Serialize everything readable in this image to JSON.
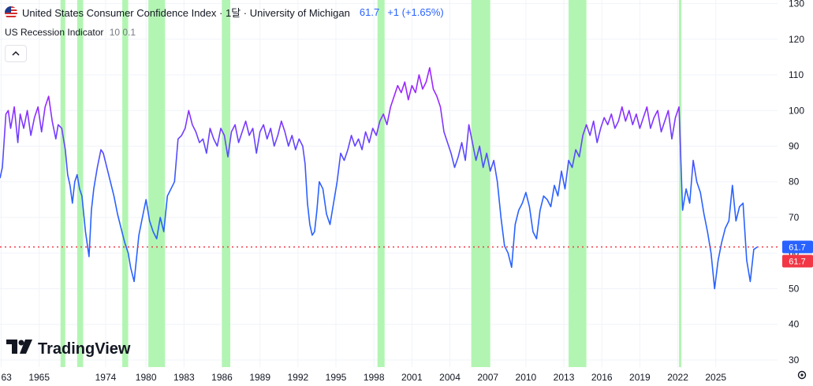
{
  "legend": {
    "title": "United States Consumer Confidence Index · 1달 · University of Michigan",
    "last_value": "61.7",
    "change": "+1 (+1.65%)",
    "indicator_name": "US Recession Indicator",
    "indicator_params": "10 0.1",
    "collapse_icon": "chevron-up-icon"
  },
  "branding": {
    "logo_text": "TradingView"
  },
  "colors": {
    "line_start": "#2962ff",
    "line_end": "#9c27ff",
    "recession": "#b2f5b2",
    "price_line": "#f23645",
    "label_blue": "#2962ff",
    "label_red": "#f23645"
  },
  "chart_data": {
    "type": "line",
    "title": "United States Consumer Confidence Index · 1달 · University of Michigan",
    "y_axis": {
      "range": [
        28,
        131
      ],
      "ticks": [
        30,
        40,
        50,
        60,
        70,
        80,
        90,
        100,
        110,
        120,
        130
      ],
      "position": "right"
    },
    "x_axis": {
      "range": [
        1962.3,
        2027.8
      ],
      "tick_labels": [
        "63",
        "1965",
        "1974",
        "1980",
        "1983",
        "1986",
        "1989",
        "1992",
        "1995",
        "1998",
        "2001",
        "2004",
        "2007",
        "2010",
        "2013",
        "2016",
        "2019",
        "2022",
        "2025"
      ],
      "tick_positions": [
        1962.4,
        1965.6,
        1971.2,
        1974.6,
        1977.8,
        1981.0,
        1984.2,
        1987.4,
        1990.6,
        1993.8,
        1997.0,
        2000.2,
        2003.4,
        2006.6,
        2009.8,
        2013.0,
        2016.2,
        2019.4,
        2022.6
      ]
    },
    "grid": true,
    "price_labels": [
      {
        "value": "61.7",
        "style": "blue"
      },
      {
        "value": "61.7",
        "style": "red"
      }
    ],
    "price_line_value": 61.7,
    "recession_periods": [
      [
        1967.4,
        1967.8
      ],
      [
        1968.8,
        1969.3
      ],
      [
        1972.6,
        1973.1
      ],
      [
        1974.8,
        1976.2
      ],
      [
        1981.0,
        1981.7
      ],
      [
        1994.1,
        1994.7
      ],
      [
        2002.0,
        2003.6
      ],
      [
        2010.2,
        2011.7
      ],
      [
        2019.5,
        2019.7
      ]
    ],
    "series": [
      {
        "points": [
          [
            1962.3,
            81
          ],
          [
            1962.5,
            84
          ],
          [
            1962.8,
            99
          ],
          [
            1963.0,
            100
          ],
          [
            1963.2,
            95
          ],
          [
            1963.5,
            101
          ],
          [
            1963.8,
            91
          ],
          [
            1964.0,
            99
          ],
          [
            1964.3,
            95
          ],
          [
            1964.6,
            100
          ],
          [
            1964.9,
            93
          ],
          [
            1965.2,
            98
          ],
          [
            1965.5,
            101
          ],
          [
            1965.8,
            94
          ],
          [
            1966.1,
            101
          ],
          [
            1966.4,
            104
          ],
          [
            1966.7,
            97
          ],
          [
            1967.0,
            92
          ],
          [
            1967.2,
            96
          ],
          [
            1967.5,
            95
          ],
          [
            1967.8,
            89
          ],
          [
            1968.0,
            82
          ],
          [
            1968.2,
            79
          ],
          [
            1968.4,
            74
          ],
          [
            1968.6,
            80
          ],
          [
            1968.8,
            82
          ],
          [
            1969.0,
            78
          ],
          [
            1969.2,
            76
          ],
          [
            1969.5,
            66
          ],
          [
            1969.8,
            59
          ],
          [
            1970.0,
            72
          ],
          [
            1970.2,
            78
          ],
          [
            1970.5,
            84
          ],
          [
            1970.8,
            89
          ],
          [
            1971.0,
            88
          ],
          [
            1971.3,
            84
          ],
          [
            1971.6,
            80
          ],
          [
            1971.9,
            76
          ],
          [
            1972.2,
            71
          ],
          [
            1972.5,
            67
          ],
          [
            1972.8,
            63
          ],
          [
            1973.1,
            60
          ],
          [
            1973.3,
            56
          ],
          [
            1973.6,
            52
          ],
          [
            1974.0,
            65
          ],
          [
            1974.3,
            70
          ],
          [
            1974.6,
            75
          ],
          [
            1974.9,
            69
          ],
          [
            1975.2,
            66
          ],
          [
            1975.5,
            64
          ],
          [
            1975.8,
            70
          ],
          [
            1976.1,
            66
          ],
          [
            1976.4,
            76
          ],
          [
            1976.7,
            78
          ],
          [
            1977.0,
            80
          ],
          [
            1977.3,
            92
          ],
          [
            1977.6,
            93
          ],
          [
            1977.9,
            95
          ],
          [
            1978.2,
            100
          ],
          [
            1978.5,
            96
          ],
          [
            1978.8,
            94
          ],
          [
            1979.1,
            91
          ],
          [
            1979.4,
            92
          ],
          [
            1979.7,
            88
          ],
          [
            1980.0,
            95
          ],
          [
            1980.3,
            92
          ],
          [
            1980.6,
            90
          ],
          [
            1980.9,
            95
          ],
          [
            1981.2,
            93
          ],
          [
            1981.5,
            87
          ],
          [
            1981.8,
            94
          ],
          [
            1982.1,
            96
          ],
          [
            1982.4,
            91
          ],
          [
            1982.7,
            94
          ],
          [
            1983.0,
            97
          ],
          [
            1983.3,
            93
          ],
          [
            1983.6,
            95
          ],
          [
            1983.9,
            88
          ],
          [
            1984.2,
            94
          ],
          [
            1984.5,
            96
          ],
          [
            1984.8,
            92
          ],
          [
            1985.1,
            95
          ],
          [
            1985.4,
            90
          ],
          [
            1985.7,
            93
          ],
          [
            1986.0,
            97
          ],
          [
            1986.3,
            94
          ],
          [
            1986.6,
            90
          ],
          [
            1986.9,
            93
          ],
          [
            1987.2,
            89
          ],
          [
            1987.5,
            92
          ],
          [
            1987.8,
            90
          ],
          [
            1988.0,
            85
          ],
          [
            1988.2,
            74
          ],
          [
            1988.4,
            68
          ],
          [
            1988.6,
            65
          ],
          [
            1988.8,
            66
          ],
          [
            1989.0,
            72
          ],
          [
            1989.2,
            80
          ],
          [
            1989.5,
            78
          ],
          [
            1989.8,
            71
          ],
          [
            1990.1,
            68
          ],
          [
            1990.4,
            74
          ],
          [
            1990.7,
            80
          ],
          [
            1991.0,
            88
          ],
          [
            1991.3,
            86
          ],
          [
            1991.6,
            89
          ],
          [
            1991.9,
            93
          ],
          [
            1992.2,
            90
          ],
          [
            1992.5,
            92
          ],
          [
            1992.8,
            89
          ],
          [
            1993.1,
            94
          ],
          [
            1993.4,
            91
          ],
          [
            1993.7,
            95
          ],
          [
            1994.0,
            93
          ],
          [
            1994.3,
            97
          ],
          [
            1994.6,
            99
          ],
          [
            1994.9,
            96
          ],
          [
            1995.2,
            101
          ],
          [
            1995.5,
            104
          ],
          [
            1995.8,
            107
          ],
          [
            1996.1,
            105
          ],
          [
            1996.4,
            108
          ],
          [
            1996.7,
            103
          ],
          [
            1997.0,
            107
          ],
          [
            1997.3,
            105
          ],
          [
            1997.6,
            110
          ],
          [
            1997.9,
            106
          ],
          [
            1998.2,
            108
          ],
          [
            1998.5,
            112
          ],
          [
            1998.8,
            106
          ],
          [
            1999.1,
            104
          ],
          [
            1999.4,
            101
          ],
          [
            1999.7,
            94
          ],
          [
            2000.0,
            91
          ],
          [
            2000.3,
            88
          ],
          [
            2000.6,
            84
          ],
          [
            2000.9,
            87
          ],
          [
            2001.2,
            91
          ],
          [
            2001.5,
            86
          ],
          [
            2001.8,
            96
          ],
          [
            2002.1,
            91
          ],
          [
            2002.4,
            86
          ],
          [
            2002.7,
            90
          ],
          [
            2003.0,
            84
          ],
          [
            2003.3,
            88
          ],
          [
            2003.6,
            83
          ],
          [
            2003.9,
            86
          ],
          [
            2004.2,
            80
          ],
          [
            2004.5,
            70
          ],
          [
            2004.8,
            62
          ],
          [
            2005.1,
            60
          ],
          [
            2005.4,
            56
          ],
          [
            2005.7,
            68
          ],
          [
            2006.0,
            72
          ],
          [
            2006.3,
            74
          ],
          [
            2006.6,
            77
          ],
          [
            2006.9,
            73
          ],
          [
            2007.2,
            66
          ],
          [
            2007.5,
            64
          ],
          [
            2007.8,
            72
          ],
          [
            2008.1,
            76
          ],
          [
            2008.4,
            75
          ],
          [
            2008.7,
            73
          ],
          [
            2009.0,
            79
          ],
          [
            2009.3,
            76
          ],
          [
            2009.6,
            83
          ],
          [
            2009.9,
            78
          ],
          [
            2010.2,
            86
          ],
          [
            2010.5,
            84
          ],
          [
            2010.8,
            89
          ],
          [
            2011.1,
            87
          ],
          [
            2011.4,
            93
          ],
          [
            2011.7,
            96
          ],
          [
            2012.0,
            93
          ],
          [
            2012.3,
            97
          ],
          [
            2012.6,
            91
          ],
          [
            2012.9,
            95
          ],
          [
            2013.2,
            98
          ],
          [
            2013.5,
            96
          ],
          [
            2013.8,
            99
          ],
          [
            2014.1,
            95
          ],
          [
            2014.4,
            97
          ],
          [
            2014.7,
            101
          ],
          [
            2015.0,
            97
          ],
          [
            2015.3,
            100
          ],
          [
            2015.6,
            96
          ],
          [
            2015.9,
            99
          ],
          [
            2016.2,
            95
          ],
          [
            2016.5,
            98
          ],
          [
            2016.8,
            101
          ],
          [
            2017.1,
            95
          ],
          [
            2017.4,
            98
          ],
          [
            2017.7,
            100
          ],
          [
            2018.0,
            94
          ],
          [
            2018.3,
            97
          ],
          [
            2018.6,
            100
          ],
          [
            2018.9,
            92
          ],
          [
            2019.2,
            98
          ],
          [
            2019.5,
            101
          ],
          [
            2019.8,
            72
          ],
          [
            2020.1,
            78
          ],
          [
            2020.4,
            74
          ],
          [
            2020.7,
            86
          ],
          [
            2021.0,
            80
          ],
          [
            2021.3,
            77
          ],
          [
            2021.6,
            71
          ],
          [
            2021.9,
            66
          ],
          [
            2022.2,
            60
          ],
          [
            2022.5,
            50
          ],
          [
            2022.8,
            58
          ],
          [
            2023.1,
            63
          ],
          [
            2023.4,
            67
          ],
          [
            2023.7,
            69
          ],
          [
            2024.0,
            79
          ],
          [
            2024.3,
            69
          ],
          [
            2024.6,
            73
          ],
          [
            2024.9,
            74
          ],
          [
            2025.2,
            58
          ],
          [
            2025.5,
            52
          ],
          [
            2025.8,
            61
          ],
          [
            2026.1,
            61.7
          ]
        ]
      }
    ]
  }
}
